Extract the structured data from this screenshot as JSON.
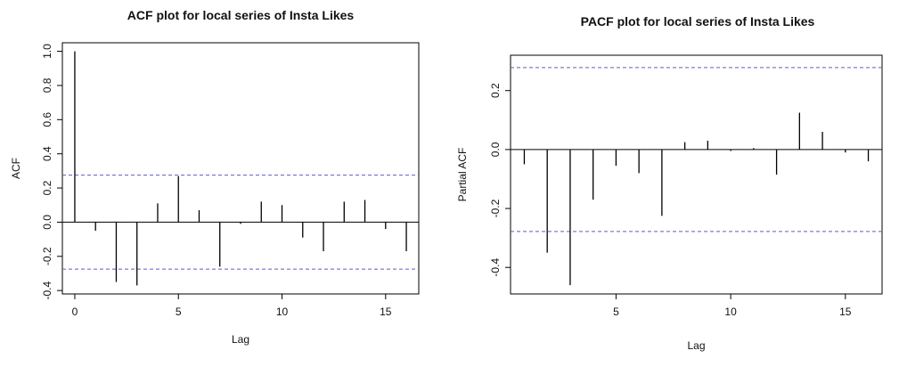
{
  "chart_data": [
    {
      "type": "bar",
      "subtype": "acf-stem",
      "title": "ACF plot for local series of Insta Likes",
      "xlabel": "Lag",
      "ylabel": "ACF",
      "xlim": [
        -0.6,
        16.6
      ],
      "ylim": [
        -0.42,
        1.05
      ],
      "xticks": [
        0,
        5,
        10,
        15
      ],
      "yticks": [
        -0.4,
        -0.2,
        0.0,
        0.2,
        0.4,
        0.6,
        0.8,
        1.0
      ],
      "ytick_labels": [
        "-0.4",
        "-0.2",
        "0.0",
        "0.2",
        "0.4",
        "0.6",
        "0.8",
        "1.0"
      ],
      "zero_line": true,
      "conf_bound": 0.275,
      "conf_color": "#5b5bd6",
      "bar_color": "#000000",
      "lags": [
        0,
        1,
        2,
        3,
        4,
        5,
        6,
        7,
        8,
        9,
        10,
        11,
        12,
        13,
        14,
        15,
        16
      ],
      "values": [
        1.0,
        -0.05,
        -0.35,
        -0.37,
        0.11,
        0.27,
        0.07,
        -0.26,
        -0.01,
        0.12,
        0.1,
        -0.09,
        -0.17,
        0.12,
        0.13,
        -0.04,
        -0.17
      ]
    },
    {
      "type": "bar",
      "subtype": "pacf-stem",
      "title": "PACF plot for local series of Insta Likes",
      "xlabel": "Lag",
      "ylabel": "Partial ACF",
      "xlim": [
        0.4,
        16.6
      ],
      "ylim": [
        -0.49,
        0.32
      ],
      "xticks": [
        5,
        10,
        15
      ],
      "yticks": [
        -0.4,
        -0.2,
        0.0,
        0.2
      ],
      "ytick_labels": [
        "-0.4",
        "-0.2",
        "0.0",
        "0.2"
      ],
      "zero_line": true,
      "conf_bound": 0.278,
      "conf_color": "#5b5bd6",
      "bar_color": "#000000",
      "lags": [
        1,
        2,
        3,
        4,
        5,
        6,
        7,
        8,
        9,
        10,
        11,
        12,
        13,
        14,
        15,
        16
      ],
      "values": [
        -0.05,
        -0.35,
        -0.46,
        -0.17,
        -0.055,
        -0.08,
        -0.225,
        0.025,
        0.03,
        -0.005,
        0.005,
        -0.085,
        0.125,
        0.06,
        -0.01,
        -0.04
      ]
    }
  ]
}
